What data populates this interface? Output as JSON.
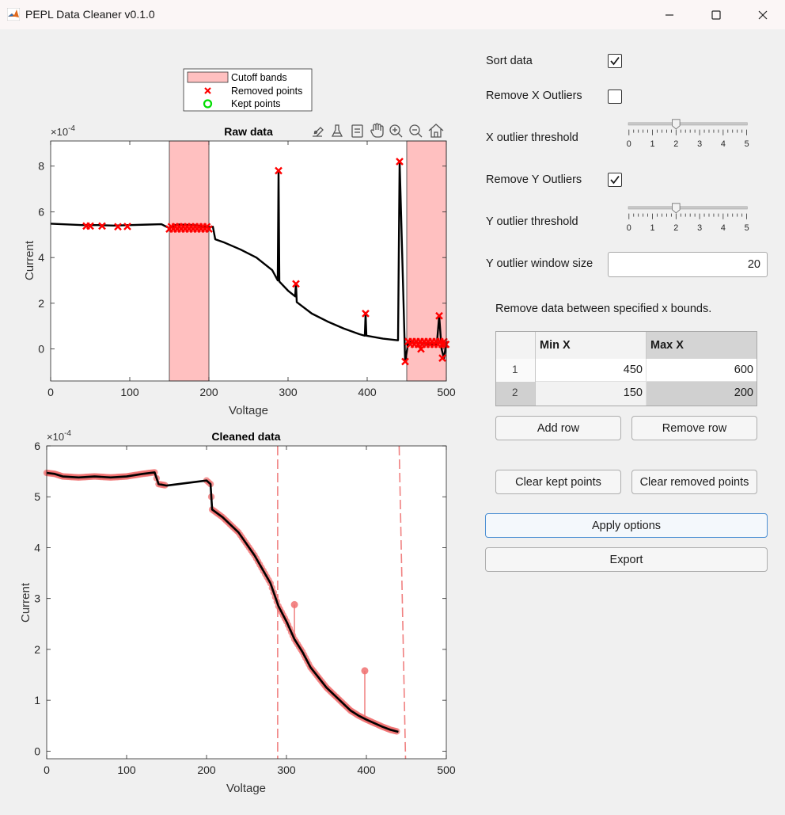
{
  "window": {
    "title": "PEPL Data Cleaner v0.1.0",
    "icon": "matlab-icon",
    "controls": [
      "minimize-icon",
      "maximize-icon",
      "close-icon"
    ]
  },
  "options": {
    "sort_data": {
      "label": "Sort data",
      "checked": true
    },
    "remove_x_outliers": {
      "label": "Remove X Outliers",
      "checked": false
    },
    "x_outlier_threshold": {
      "label": "X outlier threshold",
      "value": 2,
      "min": 0,
      "max": 5,
      "ticks": [
        "0",
        "1",
        "2",
        "3",
        "4",
        "5"
      ]
    },
    "remove_y_outliers": {
      "label": "Remove Y Outliers",
      "checked": true
    },
    "y_outlier_threshold": {
      "label": "Y outlier threshold",
      "value": 2,
      "min": 0,
      "max": 5,
      "ticks": [
        "0",
        "1",
        "2",
        "3",
        "4",
        "5"
      ]
    },
    "y_outlier_window_size": {
      "label": "Y outlier window size",
      "value": "20"
    }
  },
  "bounds": {
    "description": "Remove data between specified x bounds.",
    "columns": [
      "Min X",
      "Max X"
    ],
    "rows": [
      {
        "index": "1",
        "min": "450",
        "max": "600"
      },
      {
        "index": "2",
        "min": "150",
        "max": "200"
      }
    ]
  },
  "buttons": {
    "add_row": "Add row",
    "remove_row": "Remove row",
    "clear_kept": "Clear kept points",
    "clear_removed": "Clear removed points",
    "apply": "Apply options",
    "export": "Export"
  },
  "toolbar_icons": [
    "brush-icon",
    "clean-icon",
    "datatip-icon",
    "pan-icon",
    "zoom-in-icon",
    "zoom-out-icon",
    "home-icon"
  ],
  "chart_data": [
    {
      "type": "line",
      "title": "Raw data",
      "xlabel": "Voltage",
      "ylabel": "Current",
      "exponent": "×10",
      "exponent_power": "-4",
      "xlim": [
        0,
        500
      ],
      "ylim": [
        -1.4,
        9.1
      ],
      "xticks": [
        "0",
        "100",
        "200",
        "300",
        "400",
        "500"
      ],
      "yticks": [
        "0",
        "2",
        "4",
        "6",
        "8"
      ],
      "legend": {
        "placement": "top-outside",
        "entries": [
          "Cutoff bands",
          "Removed points",
          "Kept points"
        ]
      },
      "cutoff_bands": [
        [
          150,
          200
        ],
        [
          450,
          500
        ]
      ],
      "line": [
        [
          0,
          5.48
        ],
        [
          20,
          5.45
        ],
        [
          40,
          5.42
        ],
        [
          60,
          5.42
        ],
        [
          80,
          5.4
        ],
        [
          100,
          5.42
        ],
        [
          120,
          5.44
        ],
        [
          140,
          5.46
        ],
        [
          150,
          5.28
        ],
        [
          160,
          5.45
        ],
        [
          175,
          5.42
        ],
        [
          190,
          5.38
        ],
        [
          200,
          5.33
        ],
        [
          205,
          5.35
        ],
        [
          208,
          4.8
        ],
        [
          220,
          4.65
        ],
        [
          240,
          4.35
        ],
        [
          260,
          4.0
        ],
        [
          280,
          3.45
        ],
        [
          287,
          3.0
        ],
        [
          288,
          7.8
        ],
        [
          289,
          2.95
        ],
        [
          300,
          2.55
        ],
        [
          309,
          2.3
        ],
        [
          310,
          2.85
        ],
        [
          311,
          2.05
        ],
        [
          330,
          1.55
        ],
        [
          350,
          1.2
        ],
        [
          370,
          0.9
        ],
        [
          390,
          0.65
        ],
        [
          397,
          0.58
        ],
        [
          398,
          1.55
        ],
        [
          399,
          0.58
        ],
        [
          420,
          0.45
        ],
        [
          439,
          0.38
        ],
        [
          441,
          8.2
        ],
        [
          448,
          -0.55
        ],
        [
          452,
          0.3
        ],
        [
          470,
          0.25
        ],
        [
          488,
          0.2
        ],
        [
          491,
          1.45
        ],
        [
          494,
          0.0
        ],
        [
          497,
          -0.4
        ],
        [
          500,
          0.25
        ]
      ],
      "removed_points": [
        [
          45,
          5.38
        ],
        [
          50,
          5.38
        ],
        [
          65,
          5.38
        ],
        [
          85,
          5.35
        ],
        [
          97,
          5.36
        ],
        [
          288,
          7.8
        ],
        [
          310,
          2.85
        ],
        [
          398,
          1.55
        ],
        [
          441,
          8.2
        ],
        [
          448,
          -0.55
        ],
        [
          491,
          1.45
        ],
        [
          495,
          -0.4
        ],
        [
          498,
          0.2
        ],
        [
          468,
          0.0
        ]
      ],
      "kept_points": []
    },
    {
      "type": "line",
      "title": "Cleaned data",
      "xlabel": "Voltage",
      "ylabel": "Current",
      "exponent": "×10",
      "exponent_power": "-4",
      "xlim": [
        0,
        500
      ],
      "ylim": [
        -0.15,
        6
      ],
      "xticks": [
        "0",
        "100",
        "200",
        "300",
        "400",
        "500"
      ],
      "yticks": [
        "0",
        "1",
        "2",
        "3",
        "4",
        "5",
        "6"
      ],
      "line": [
        [
          0,
          5.47
        ],
        [
          10,
          5.45
        ],
        [
          20,
          5.4
        ],
        [
          40,
          5.38
        ],
        [
          60,
          5.4
        ],
        [
          80,
          5.38
        ],
        [
          100,
          5.4
        ],
        [
          120,
          5.45
        ],
        [
          135,
          5.48
        ],
        [
          140,
          5.25
        ],
        [
          150,
          5.22
        ],
        [
          200,
          5.32
        ],
        [
          205,
          5.25
        ],
        [
          207,
          4.75
        ],
        [
          220,
          4.6
        ],
        [
          240,
          4.3
        ],
        [
          260,
          3.85
        ],
        [
          280,
          3.3
        ],
        [
          290,
          2.85
        ],
        [
          300,
          2.55
        ],
        [
          310,
          2.2
        ],
        [
          320,
          1.95
        ],
        [
          330,
          1.65
        ],
        [
          340,
          1.45
        ],
        [
          350,
          1.25
        ],
        [
          360,
          1.1
        ],
        [
          370,
          0.95
        ],
        [
          380,
          0.8
        ],
        [
          390,
          0.7
        ],
        [
          400,
          0.62
        ],
        [
          410,
          0.55
        ],
        [
          420,
          0.48
        ],
        [
          430,
          0.42
        ],
        [
          440,
          0.38
        ]
      ],
      "outlier_markers": [
        [
          310,
          2.88
        ],
        [
          398,
          1.58
        ]
      ],
      "dashed_lines": [
        [
          289,
          -0.15,
          289,
          6
        ],
        [
          441,
          6,
          449,
          -0.15
        ]
      ]
    }
  ]
}
